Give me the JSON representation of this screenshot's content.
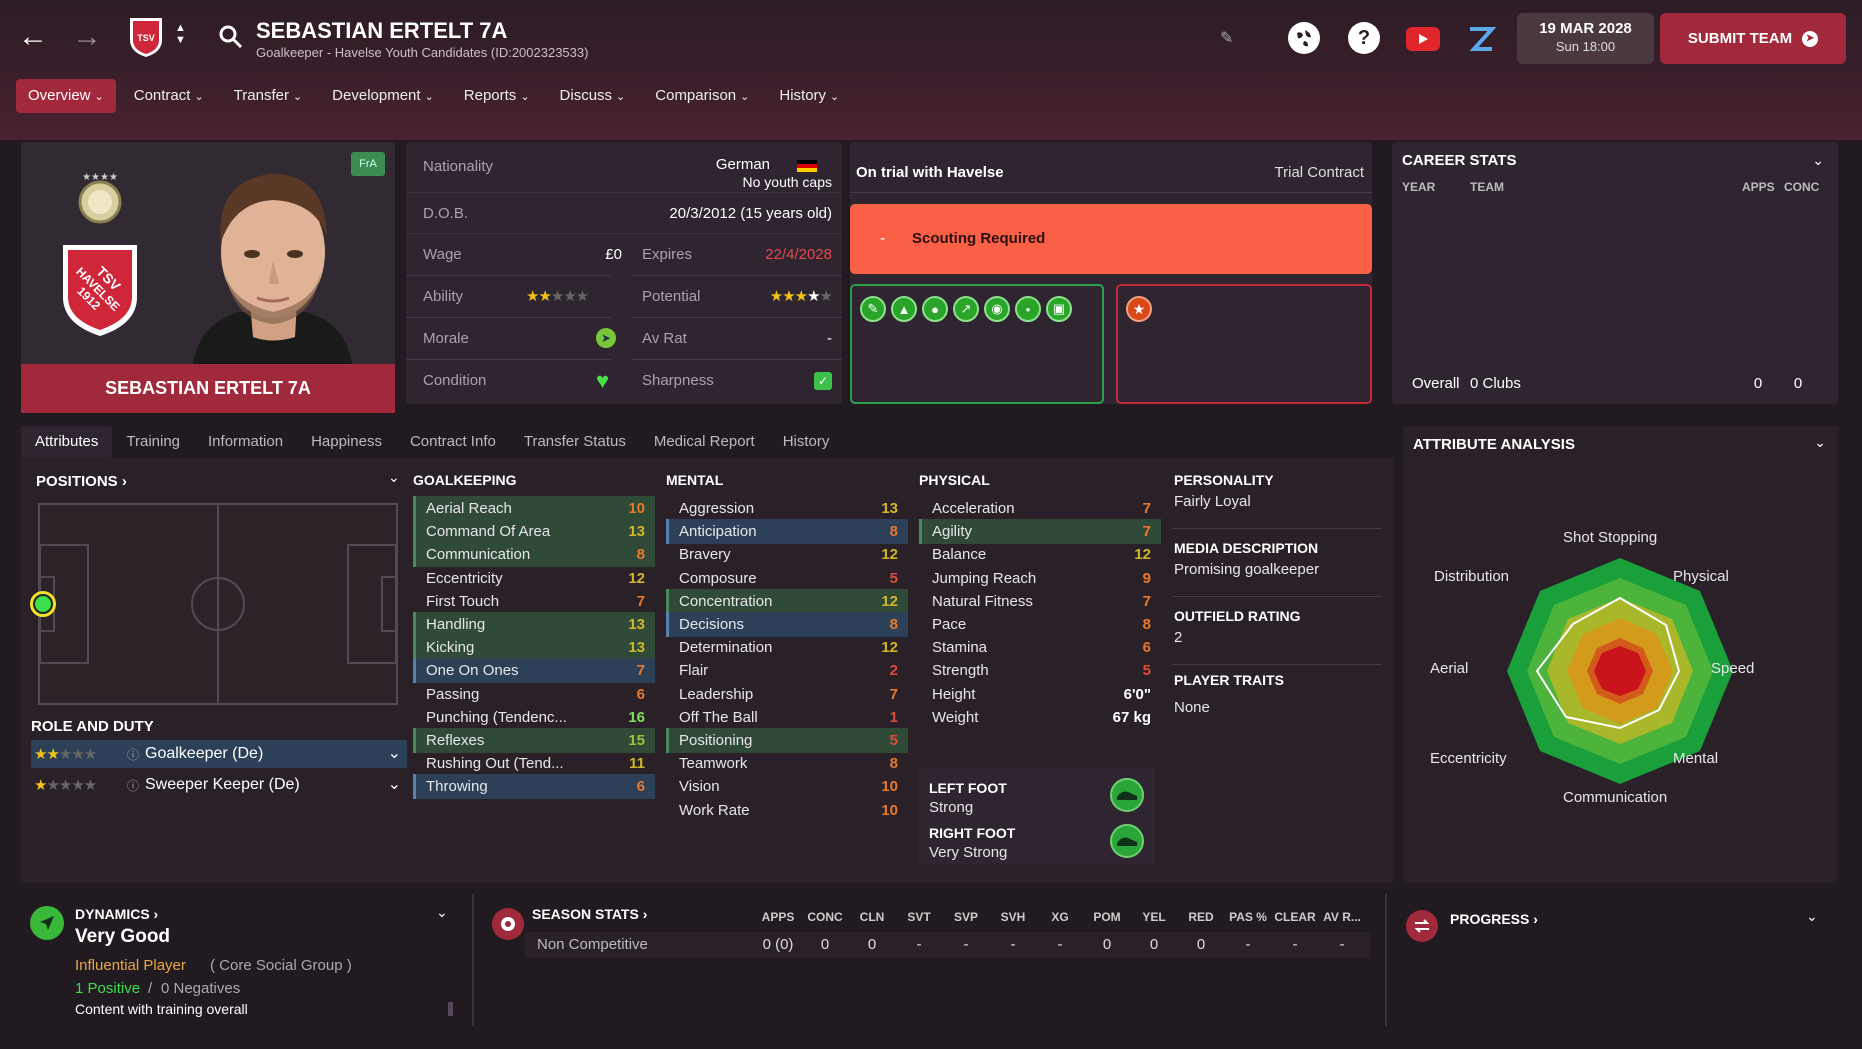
{
  "header": {
    "name": "SEBASTIAN ERTELT 7A",
    "subtitle": "Goalkeeper - Havelse Youth Candidates (ID:2002323533)",
    "date": "19 MAR 2028",
    "time": "Sun 18:00",
    "submit": "SUBMIT TEAM",
    "crest_text": "TSV HAVELSE 1912"
  },
  "menu": [
    "Overview",
    "Contract",
    "Transfer",
    "Development",
    "Reports",
    "Discuss",
    "Comparison",
    "History"
  ],
  "player": {
    "card_name": "SEBASTIAN ERTELT 7A",
    "fra_badge": "FrA"
  },
  "info": {
    "nationality_label": "Nationality",
    "nationality": "German",
    "youth_caps": "No youth caps",
    "dob_label": "D.O.B.",
    "dob": "20/3/2012 (15 years old)",
    "wage_label": "Wage",
    "wage": "£0",
    "expires_label": "Expires",
    "expires": "22/4/2028",
    "ability_label": "Ability",
    "ability_stars": 1.5,
    "potential_label": "Potential",
    "potential_stars": 3.5,
    "morale_label": "Morale",
    "avrat_label": "Av Rat",
    "avrat": "-",
    "condition_label": "Condition",
    "sharpness_label": "Sharpness"
  },
  "trial": {
    "title": "On trial with Havelse",
    "contract": "Trial Contract",
    "scouting_dash": "-",
    "scouting": "Scouting Required"
  },
  "career": {
    "title": "CAREER STATS",
    "col_year": "YEAR",
    "col_team": "TEAM",
    "col_apps": "APPS",
    "col_conc": "CONC",
    "overall": "Overall",
    "clubs": "0 Clubs",
    "apps": "0",
    "conc": "0"
  },
  "tabs": [
    "Attributes",
    "Training",
    "Information",
    "Happiness",
    "Contract Info",
    "Transfer Status",
    "Medical Report",
    "History"
  ],
  "positions": {
    "title": "POSITIONS",
    "role_title": "ROLE AND DUTY",
    "roles": [
      {
        "name": "Goalkeeper (De)",
        "stars": 1.5
      },
      {
        "name": "Sweeper Keeper (De)",
        "stars": 1
      }
    ]
  },
  "goalkeeping": {
    "title": "GOALKEEPING",
    "items": [
      {
        "n": "Aerial Reach",
        "v": "10",
        "c": "org",
        "h": "g"
      },
      {
        "n": "Command Of Area",
        "v": "13",
        "c": "yel",
        "h": "g"
      },
      {
        "n": "Communication",
        "v": "8",
        "c": "org",
        "h": "g"
      },
      {
        "n": "Eccentricity",
        "v": "12",
        "c": "yel",
        "h": ""
      },
      {
        "n": "First Touch",
        "v": "7",
        "c": "org",
        "h": ""
      },
      {
        "n": "Handling",
        "v": "13",
        "c": "yel",
        "h": "g"
      },
      {
        "n": "Kicking",
        "v": "13",
        "c": "yel",
        "h": "g"
      },
      {
        "n": "One On Ones",
        "v": "7",
        "c": "org",
        "h": "b"
      },
      {
        "n": "Passing",
        "v": "6",
        "c": "org",
        "h": ""
      },
      {
        "n": "Punching (Tendenc...",
        "v": "16",
        "c": "lgr",
        "h": ""
      },
      {
        "n": "Reflexes",
        "v": "15",
        "c": "grn",
        "h": "g"
      },
      {
        "n": "Rushing Out (Tend...",
        "v": "11",
        "c": "yel",
        "h": ""
      },
      {
        "n": "Throwing",
        "v": "6",
        "c": "org",
        "h": "b"
      }
    ]
  },
  "mental": {
    "title": "MENTAL",
    "items": [
      {
        "n": "Aggression",
        "v": "13",
        "c": "yel",
        "h": ""
      },
      {
        "n": "Anticipation",
        "v": "8",
        "c": "org",
        "h": "b"
      },
      {
        "n": "Bravery",
        "v": "12",
        "c": "yel",
        "h": ""
      },
      {
        "n": "Composure",
        "v": "5",
        "c": "red",
        "h": ""
      },
      {
        "n": "Concentration",
        "v": "12",
        "c": "yel",
        "h": "g"
      },
      {
        "n": "Decisions",
        "v": "8",
        "c": "org",
        "h": "b"
      },
      {
        "n": "Determination",
        "v": "12",
        "c": "yel",
        "h": ""
      },
      {
        "n": "Flair",
        "v": "2",
        "c": "red",
        "h": ""
      },
      {
        "n": "Leadership",
        "v": "7",
        "c": "org",
        "h": ""
      },
      {
        "n": "Off The Ball",
        "v": "1",
        "c": "red",
        "h": ""
      },
      {
        "n": "Positioning",
        "v": "5",
        "c": "red",
        "h": "g"
      },
      {
        "n": "Teamwork",
        "v": "8",
        "c": "org",
        "h": ""
      },
      {
        "n": "Vision",
        "v": "10",
        "c": "org",
        "h": ""
      },
      {
        "n": "Work Rate",
        "v": "10",
        "c": "org",
        "h": ""
      }
    ]
  },
  "physical": {
    "title": "PHYSICAL",
    "items": [
      {
        "n": "Acceleration",
        "v": "7",
        "c": "org",
        "h": ""
      },
      {
        "n": "Agility",
        "v": "7",
        "c": "org",
        "h": "g"
      },
      {
        "n": "Balance",
        "v": "12",
        "c": "yel",
        "h": ""
      },
      {
        "n": "Jumping Reach",
        "v": "9",
        "c": "org",
        "h": ""
      },
      {
        "n": "Natural Fitness",
        "v": "7",
        "c": "org",
        "h": ""
      },
      {
        "n": "Pace",
        "v": "8",
        "c": "org",
        "h": ""
      },
      {
        "n": "Stamina",
        "v": "6",
        "c": "org",
        "h": ""
      },
      {
        "n": "Strength",
        "v": "5",
        "c": "red",
        "h": ""
      },
      {
        "n": "Height",
        "v": "6'0\"",
        "c": "wht",
        "h": ""
      },
      {
        "n": "Weight",
        "v": "67 kg",
        "c": "wht",
        "h": ""
      }
    ],
    "left_foot_label": "LEFT FOOT",
    "left_foot": "Strong",
    "right_foot_label": "RIGHT FOOT",
    "right_foot": "Very Strong"
  },
  "personality": {
    "title": "PERSONALITY",
    "value": "Fairly Loyal",
    "media_title": "MEDIA DESCRIPTION",
    "media": "Promising goalkeeper",
    "outfield_title": "OUTFIELD RATING",
    "outfield": "2",
    "traits_title": "PLAYER TRAITS",
    "traits": "None"
  },
  "analysis": {
    "title": "ATTRIBUTE ANALYSIS",
    "labels": [
      "Shot Stopping",
      "Physical",
      "Speed",
      "Mental",
      "Communication",
      "Eccentricity",
      "Aerial",
      "Distribution"
    ]
  },
  "dynamics": {
    "title": "DYNAMICS",
    "rating": "Very Good",
    "influence": "Influential Player",
    "group": "( Core Social Group )",
    "positives": "1 Positive",
    "slash": "/",
    "negatives": "0 Negatives",
    "content": "Content with training overall"
  },
  "season": {
    "title": "SEASON STATS",
    "cols": [
      "APPS",
      "CONC",
      "CLN",
      "SVT",
      "SVP",
      "SVH",
      "XG",
      "POM",
      "YEL",
      "RED",
      "PAS %",
      "CLEAR",
      "AV R..."
    ],
    "row_label": "Non Competitive",
    "row": [
      "0 (0)",
      "0",
      "0",
      "-",
      "-",
      "-",
      "-",
      "0",
      "0",
      "0",
      "-",
      "-",
      "-"
    ]
  },
  "progress": {
    "title": "PROGRESS"
  }
}
